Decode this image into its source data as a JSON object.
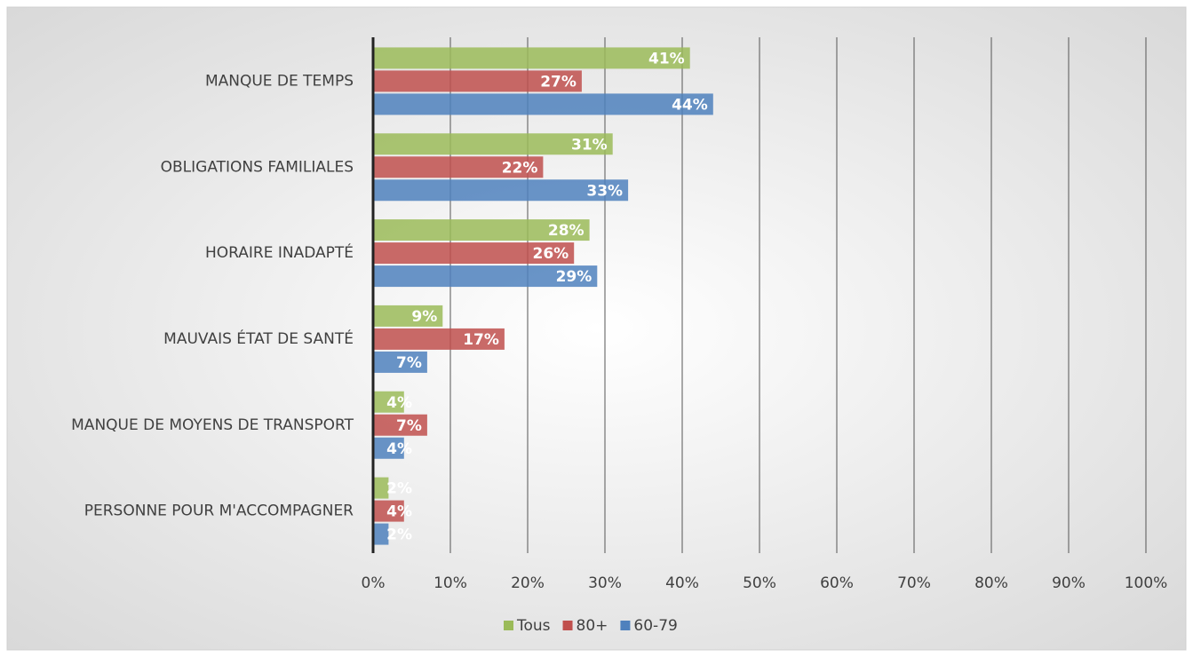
{
  "chart_data": {
    "type": "bar",
    "orientation": "horizontal",
    "categories": [
      "MANQUE DE TEMPS",
      "OBLIGATIONS FAMILIALES",
      "HORAIRE INADAPTÉ",
      "MAUVAIS ÉTAT DE SANTÉ",
      "MANQUE DE MOYENS DE TRANSPORT",
      "PERSONNE POUR M'ACCOMPAGNER"
    ],
    "series": [
      {
        "name": "Tous",
        "color": "#9bbb59",
        "values": [
          41,
          31,
          28,
          9,
          4,
          2
        ],
        "value_labels": [
          "41%",
          "31%",
          "28%",
          "9%",
          "4%",
          "2%"
        ]
      },
      {
        "name": "80+",
        "color": "#c0504d",
        "values": [
          27,
          22,
          26,
          17,
          7,
          4
        ],
        "value_labels": [
          "27%",
          "22%",
          "26%",
          "17%",
          "7%",
          "4%"
        ]
      },
      {
        "name": "60-79",
        "color": "#4f81bd",
        "values": [
          44,
          33,
          29,
          7,
          4,
          2
        ],
        "value_labels": [
          "44%",
          "33%",
          "29%",
          "7%",
          "4%",
          "2%"
        ]
      }
    ],
    "xlim": [
      0,
      100
    ],
    "xticks": [
      {
        "value": 0,
        "label": "0%"
      },
      {
        "value": 10,
        "label": "10%"
      },
      {
        "value": 20,
        "label": "20%"
      },
      {
        "value": 30,
        "label": "30%"
      },
      {
        "value": 40,
        "label": "40%"
      },
      {
        "value": 50,
        "label": "50%"
      },
      {
        "value": 60,
        "label": "60%"
      },
      {
        "value": 70,
        "label": "70%"
      },
      {
        "value": 80,
        "label": "80%"
      },
      {
        "value": 90,
        "label": "90%"
      },
      {
        "value": 100,
        "label": "100%"
      }
    ],
    "grid": true,
    "legend": "bottom"
  }
}
